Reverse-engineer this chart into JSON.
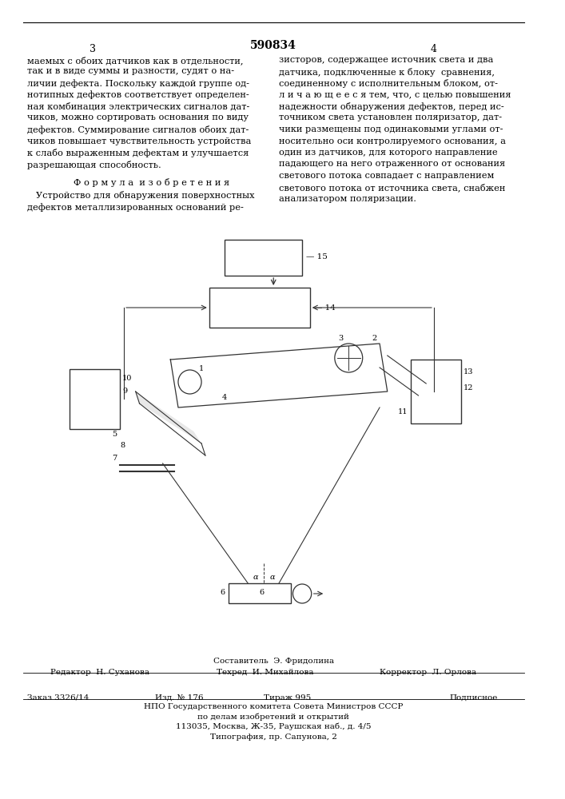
{
  "patent_number": "590834",
  "page_left": "3",
  "page_right": "4",
  "text_left_col": [
    "маемых с обоих датчиков как в отдельности,",
    "так и в виде суммы и разности, судят о на-",
    "личии дефекта. Поскольку каждой группе од-",
    "нотипных дефектов соответствует определен-",
    "ная комбинация электрических сигналов дат-",
    "чиков, можно сортировать основания по виду",
    "дефектов. Суммирование сигналов обоих дат-",
    "чиков повышает чувствительность устройства",
    "к слабо выраженным дефектам и улучшается",
    "разрешающая способность."
  ],
  "formula_title": "Ф о р м у л а  и з о б р е т е н и я",
  "formula_text": [
    "   Устройство для обнаружения поверхностных",
    "дефектов металлизированных оснований ре-"
  ],
  "text_right_col": [
    "зисторов, содержащее источник света и два",
    "датчика, подключенные к блоку  сравнения,",
    "соединенному с исполнительным блоком, от-",
    "л и ч а ю щ е е с я тем, что, с целью повышения",
    "надежности обнаружения дефектов, перед ис-",
    "точником света установлен поляризатор, дат-",
    "чики размещены под одинаковыми углами от-",
    "носительно оси контролируемого основания, а",
    "один из датчиков, для которого направление",
    "падающего на него отраженного от основания",
    "светового потока совпадает с направлением",
    "светового потока от источника света, снабжен",
    "анализатором поляризации."
  ],
  "footer_composer": "Составитель  Э. Фридолина",
  "footer_editor": "Редактор  Н. Суханова",
  "footer_tech": "Техред  И. Михайлова",
  "footer_corrector": "Корректор  Л. Орлова",
  "footer_order": "Заказ 3326/14",
  "footer_edition": "Изд. № 176",
  "footer_circulation": "Тираж 995",
  "footer_subscription": "Подписное",
  "footer_npo": "НПО Государственного комитета Совета Министров СССР",
  "footer_dept": "по делам изобретений и открытий",
  "footer_address": "113035, Москва, Ж-35, Раушская наб., д. 4/5",
  "footer_print": "Типография, пр. Сапунова, 2",
  "bg_color": "#ffffff",
  "text_color": "#000000",
  "line_color": "#333333"
}
